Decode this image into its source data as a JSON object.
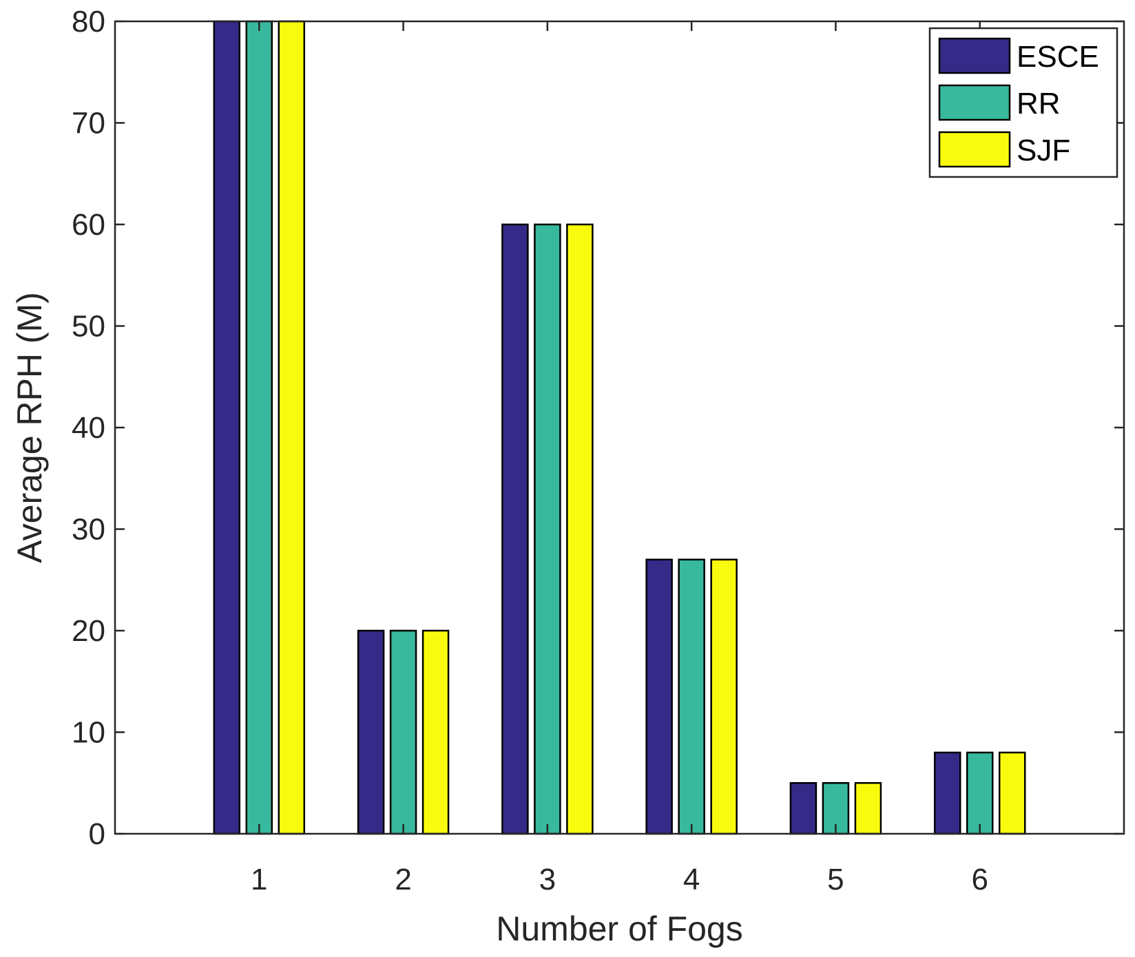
{
  "chart_data": {
    "type": "bar",
    "title": "",
    "xlabel": "Number of Fogs",
    "ylabel": "Average RPH (M)",
    "categories": [
      "1",
      "2",
      "3",
      "4",
      "5",
      "6"
    ],
    "ylim": [
      0,
      80
    ],
    "yticks": [
      "0",
      "10",
      "20",
      "30",
      "40",
      "50",
      "60",
      "70",
      "80"
    ],
    "grid": false,
    "legend_position": "top-right",
    "series": [
      {
        "name": "ESCE",
        "color": "#352A87",
        "values": [
          80,
          20,
          60,
          27,
          5,
          8
        ]
      },
      {
        "name": "RR",
        "color": "#38B99E",
        "values": [
          80,
          20,
          60,
          27,
          5,
          8
        ]
      },
      {
        "name": "SJF",
        "color": "#F9FB0E",
        "values": [
          80,
          20,
          60,
          27,
          5,
          8
        ]
      }
    ]
  }
}
